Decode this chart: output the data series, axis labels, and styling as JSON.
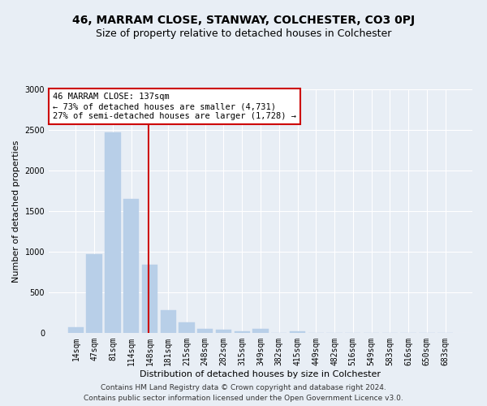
{
  "title": "46, MARRAM CLOSE, STANWAY, COLCHESTER, CO3 0PJ",
  "subtitle": "Size of property relative to detached houses in Colchester",
  "xlabel": "Distribution of detached houses by size in Colchester",
  "ylabel": "Number of detached properties",
  "categories": [
    "14sqm",
    "47sqm",
    "81sqm",
    "114sqm",
    "148sqm",
    "181sqm",
    "215sqm",
    "248sqm",
    "282sqm",
    "315sqm",
    "349sqm",
    "382sqm",
    "415sqm",
    "449sqm",
    "482sqm",
    "516sqm",
    "549sqm",
    "583sqm",
    "616sqm",
    "650sqm",
    "683sqm"
  ],
  "values": [
    75,
    975,
    2470,
    1650,
    840,
    280,
    135,
    55,
    40,
    25,
    55,
    5,
    20,
    0,
    0,
    0,
    0,
    0,
    0,
    0,
    0
  ],
  "bar_color": "#b8cfe8",
  "bar_edgecolor": "#b8cfe8",
  "vline_x": 3.95,
  "vline_color": "#cc0000",
  "annotation_text": "46 MARRAM CLOSE: 137sqm\n← 73% of detached houses are smaller (4,731)\n27% of semi-detached houses are larger (1,728) →",
  "annotation_box_color": "#ffffff",
  "annotation_box_edgecolor": "#cc0000",
  "ylim": [
    0,
    3000
  ],
  "yticks": [
    0,
    500,
    1000,
    1500,
    2000,
    2500,
    3000
  ],
  "footer_line1": "Contains HM Land Registry data © Crown copyright and database right 2024.",
  "footer_line2": "Contains public sector information licensed under the Open Government Licence v3.0.",
  "bg_color": "#e8eef5",
  "plot_bg_color": "#e8eef5",
  "grid_color": "#ffffff",
  "title_fontsize": 10,
  "subtitle_fontsize": 9,
  "axis_label_fontsize": 8,
  "tick_fontsize": 7,
  "footer_fontsize": 6.5,
  "annot_fontsize": 7.5
}
